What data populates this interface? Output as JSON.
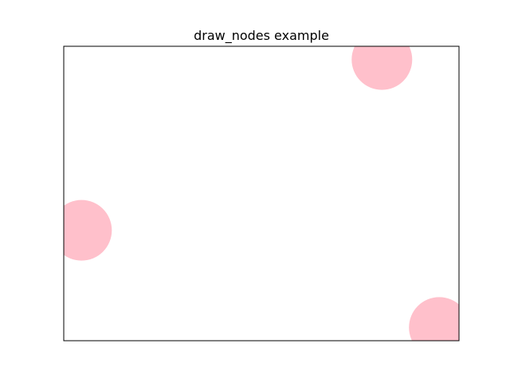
{
  "chart_data": {
    "type": "scatter",
    "title": "draw_nodes example",
    "xlabel": "",
    "ylabel": "",
    "xlim": [
      0.0,
      1.0
    ],
    "ylim": [
      0.0,
      1.0
    ],
    "grid": false,
    "axes_ticks": false,
    "node_color": "#ffc0cb",
    "nodes": [
      {
        "x": 0.805,
        "y": 0.955
      },
      {
        "x": 0.045,
        "y": 0.375
      },
      {
        "x": 0.95,
        "y": 0.045
      }
    ]
  }
}
